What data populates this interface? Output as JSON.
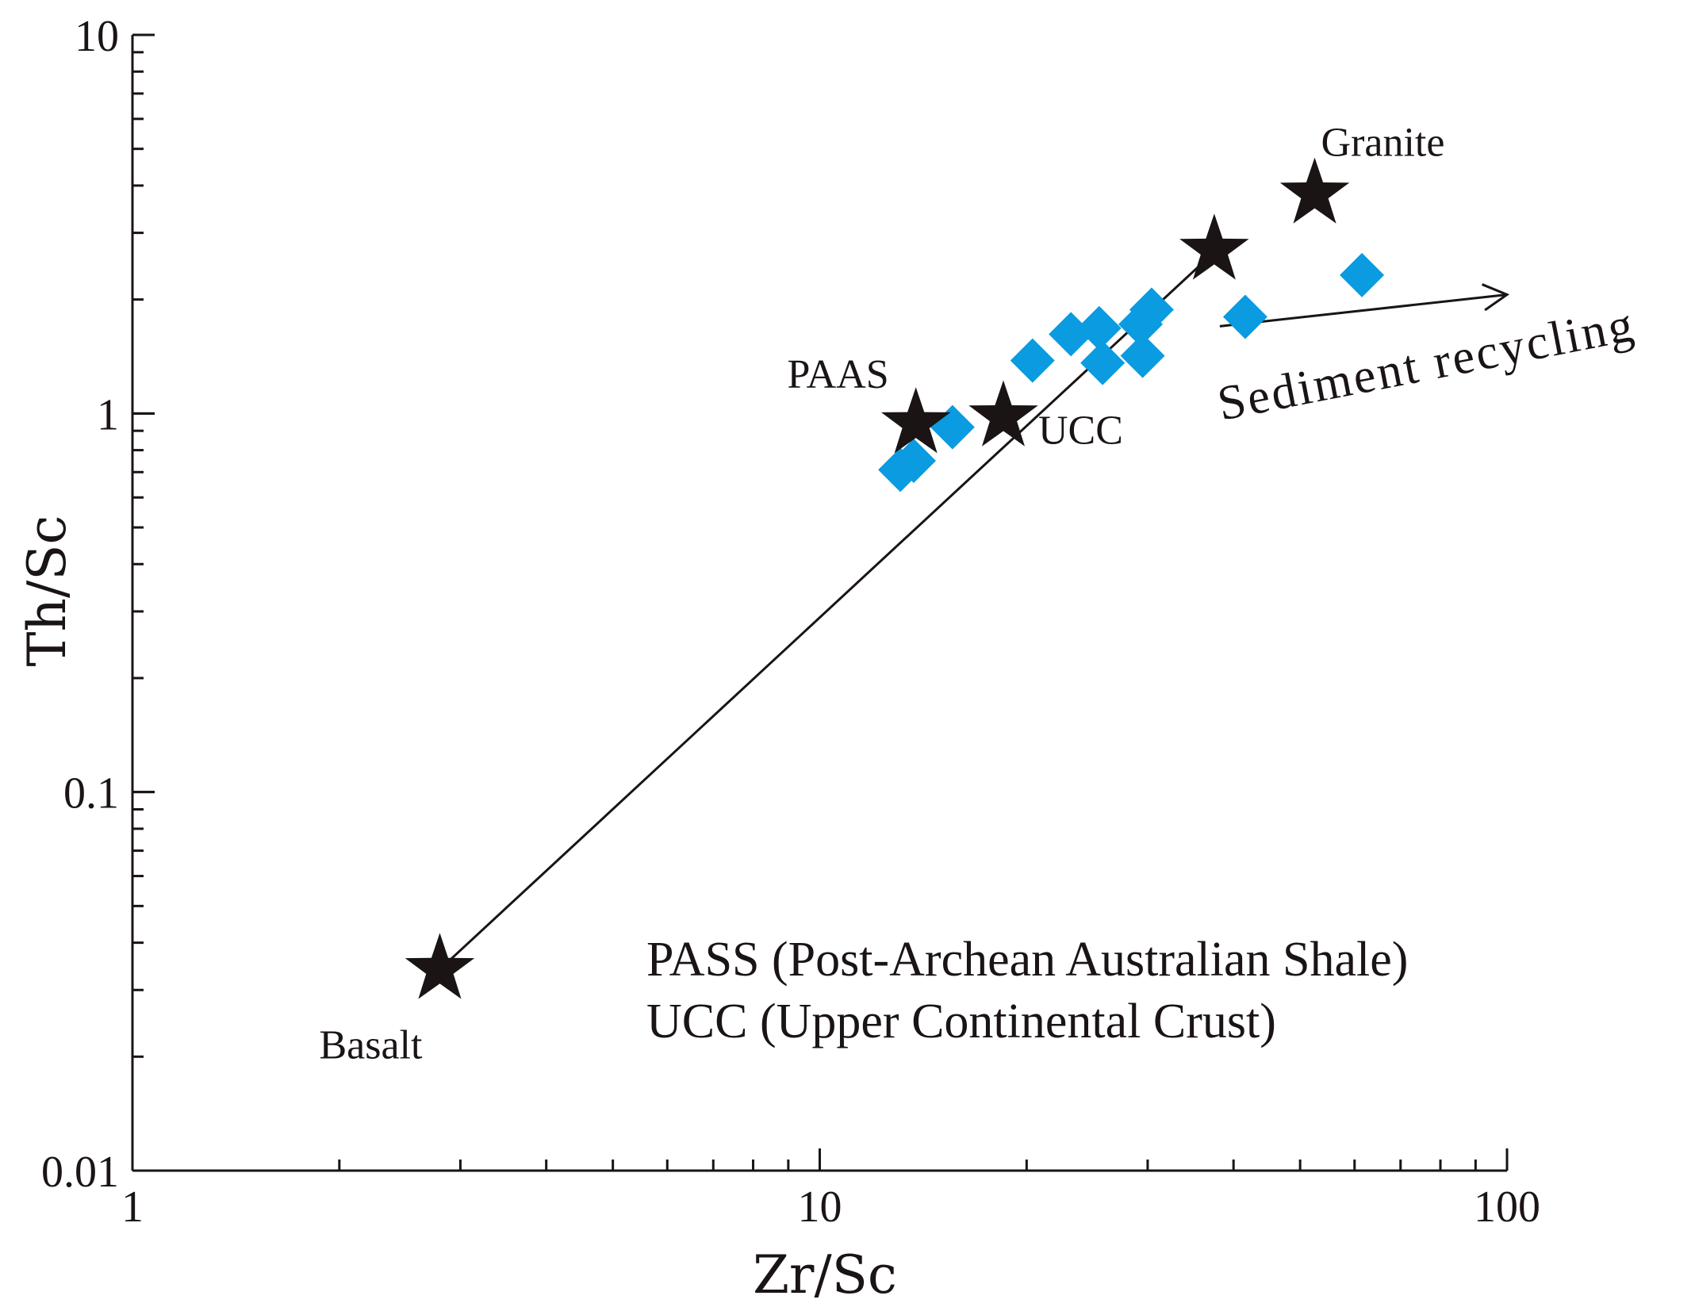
{
  "chart_data": {
    "type": "scatter",
    "xlabel": "Zr/Sc",
    "ylabel": "Th/Sc",
    "xscale": "log",
    "yscale": "log",
    "xlim": [
      1,
      100
    ],
    "ylim": [
      0.01,
      10
    ],
    "x_tick_labels": [
      "1",
      "10",
      "100"
    ],
    "y_tick_labels": [
      "0.01",
      "0.1",
      "1",
      "10"
    ],
    "grid": false,
    "sample_color": "#0a9be0",
    "reference_color": "#1a1414",
    "samples": {
      "marker": "diamond",
      "x": [
        13.1,
        13.7,
        15.6,
        20.4,
        23.2,
        25.5,
        25.8,
        29.5,
        29.3,
        30.4,
        41.6,
        61.5
      ],
      "y": [
        0.71,
        0.75,
        0.92,
        1.38,
        1.62,
        1.68,
        1.36,
        1.42,
        1.72,
        1.88,
        1.8,
        2.32
      ]
    },
    "reference_points": [
      {
        "label": "Basalt",
        "x": 2.8,
        "y": 0.034
      },
      {
        "label": "PAAS",
        "x": 13.8,
        "y": 0.94
      },
      {
        "label": "UCC",
        "x": 18.5,
        "y": 0.98
      },
      {
        "label": "",
        "x": 37.5,
        "y": 2.7
      },
      {
        "label": "Granite",
        "x": 52.5,
        "y": 3.8
      }
    ],
    "trend_line": {
      "from": {
        "x": 2.8,
        "y": 0.034
      },
      "to": {
        "x": 36.5,
        "y": 2.55
      }
    },
    "recycling_arrow": {
      "label": "Sediment recycling",
      "from": {
        "x": 38.2,
        "y": 1.7
      },
      "to": {
        "x": 100,
        "y": 2.06
      }
    },
    "legend_lines": [
      "PASS (Post-Archean Australian Shale)",
      "UCC (Upper Continental Crust)"
    ]
  }
}
